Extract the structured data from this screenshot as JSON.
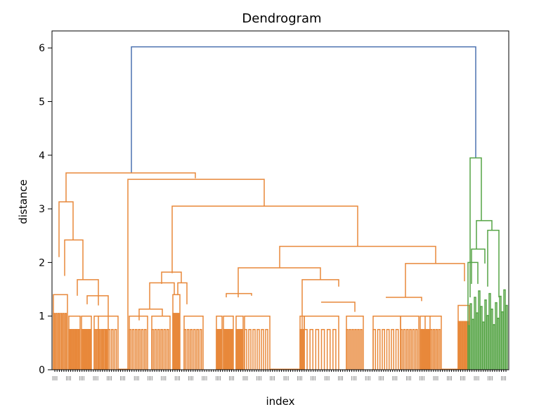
{
  "chart_data": {
    "type": "dendrogram",
    "title": "Dendrogram",
    "xlabel": "index",
    "ylabel": "distance",
    "ylim": [
      0,
      6.3
    ],
    "yticks": [
      "0",
      "1",
      "2",
      "3",
      "4",
      "5",
      "6"
    ],
    "leaf_count": 200,
    "leaf_tick_label": "||||",
    "colors": {
      "cluster_1": "#e8883a",
      "cluster_2": "#55a445",
      "above_threshold": "#4c72b0",
      "axis": "#000000"
    },
    "root": {
      "left": "cluster_1",
      "right": "cluster_2",
      "height": 6.02
    },
    "clusters": [
      {
        "name": "cluster_1",
        "color": "#e8883a",
        "top_height": 3.67,
        "sub_merges": [
          3.55,
          3.05,
          2.3,
          1.98,
          1.9,
          1.8
        ]
      },
      {
        "name": "cluster_2",
        "color": "#55a445",
        "top_height": 3.95,
        "sub_merges": [
          2.78,
          2.6,
          2.25,
          1.98,
          1.6,
          1.35
        ]
      }
    ]
  }
}
